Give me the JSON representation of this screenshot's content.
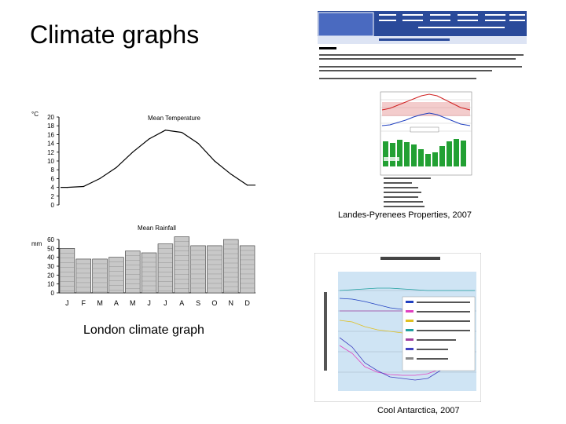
{
  "slide": {
    "title": "Climate graphs",
    "captions": {
      "london": "London climate graph",
      "landes": "Landes-Pyrenees Properties, 2007",
      "antarctica": "Cool Antarctica, 2007"
    }
  },
  "colors": {
    "bar_fill": "#c8c8c8",
    "bar_stroke": "#333333",
    "header_blue": "#2a4a9a",
    "chart_bg": "#cfe4f4",
    "rain_green": "#22a033",
    "temp_red": "#d02020",
    "temp_blue": "#2040c0"
  },
  "chart_data": [
    {
      "type": "line",
      "title": "Mean Temperature",
      "ylabel": "°C",
      "yticks": [
        "20",
        "18",
        "16",
        "14",
        "12",
        "10",
        "8",
        "6",
        "4",
        "2",
        "0"
      ],
      "ylim": [
        0,
        20
      ],
      "categories": [
        "J",
        "F",
        "M",
        "A",
        "M",
        "J",
        "J",
        "A",
        "S",
        "O",
        "N",
        "D"
      ],
      "series": [
        {
          "values": [
            4,
            4.2,
            6,
            8.5,
            12,
            15,
            17,
            16.5,
            14,
            10,
            7,
            4.5
          ]
        }
      ]
    },
    {
      "type": "bar",
      "title": "Mean Rainfall",
      "ylabel": "mm",
      "yticks": [
        "60",
        "50",
        "40",
        "30",
        "20",
        "10",
        "0"
      ],
      "ylim": [
        0,
        60
      ],
      "categories": [
        "J",
        "F",
        "M",
        "A",
        "M",
        "J",
        "J",
        "A",
        "S",
        "O",
        "N",
        "D"
      ],
      "values": [
        50,
        38,
        38,
        40,
        47,
        45,
        55,
        63,
        53,
        53,
        60,
        53
      ]
    }
  ]
}
